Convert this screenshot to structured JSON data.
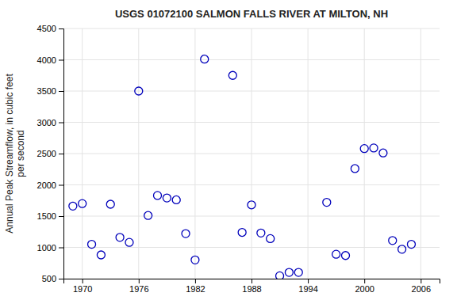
{
  "chart_data": {
    "type": "scatter",
    "title": "USGS 01072100 SALMON FALLS RIVER AT MILTON, NH",
    "y_label": "Annual Peak Streamflow, in cubic feet\nper second",
    "x": [
      1969,
      1970,
      1971,
      1972,
      1973,
      1974,
      1975,
      1976,
      1977,
      1978,
      1979,
      1980,
      1981,
      1982,
      1983,
      1986,
      1987,
      1988,
      1989,
      1990,
      1991,
      1992,
      1993,
      1996,
      1997,
      1998,
      1999,
      2000,
      2001,
      2002,
      2003,
      2004,
      2005
    ],
    "values": [
      1660,
      1700,
      1050,
      880,
      1690,
      1160,
      1080,
      3500,
      1510,
      1830,
      1790,
      1760,
      1220,
      800,
      4010,
      3750,
      1240,
      1680,
      1230,
      1140,
      545,
      600,
      600,
      1720,
      890,
      870,
      2260,
      2580,
      2590,
      2510,
      1110,
      970,
      1050
    ],
    "color": "#0000bb",
    "marker": "circle-open",
    "xlim": [
      1968,
      2008
    ],
    "ylim": [
      500,
      4500
    ],
    "xticks": [
      1970,
      1976,
      1982,
      1988,
      1994,
      2000,
      2006
    ],
    "yticks": [
      500,
      1000,
      1500,
      2000,
      2500,
      3000,
      3500,
      4000,
      4500
    ],
    "grid": true
  }
}
